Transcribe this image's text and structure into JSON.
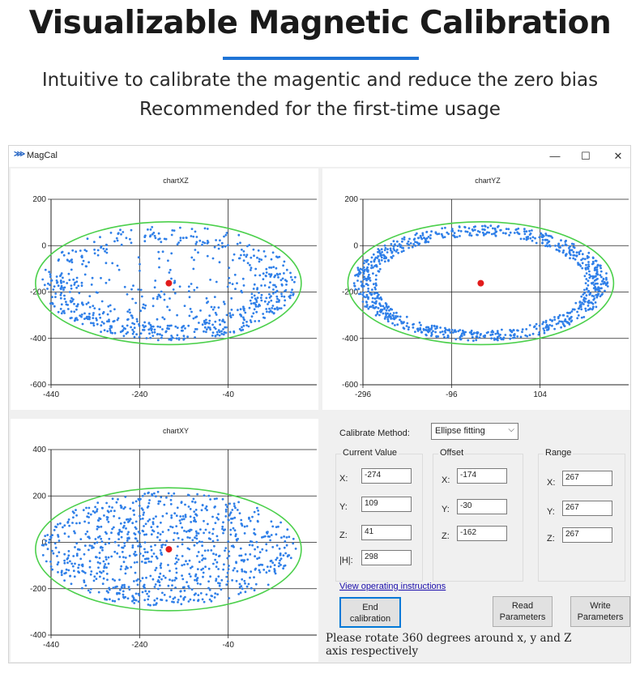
{
  "hero": {
    "title": "Visualizable Magnetic Calibration",
    "subtitle_line1": "Intuitive to calibrate the magentic and reduce the zero bias",
    "subtitle_line2": "Recommended for the first-time usage"
  },
  "window": {
    "title": "MagCal",
    "minimize": "—",
    "maximize": "☐",
    "close": "✕"
  },
  "charts": [
    {
      "title": "chartXZ",
      "xlim": [
        -440,
        160
      ],
      "ylim": [
        -600,
        200
      ],
      "xticks": [
        "-440",
        "-240",
        "-40"
      ],
      "yticks": [
        "200",
        "0",
        "-200",
        "-400",
        "-600"
      ],
      "ellipse": {
        "cx": -175,
        "cy": -162,
        "rx": 300,
        "ry": 265
      },
      "center": {
        "x": -174,
        "y": -162
      },
      "point_style": "shell"
    },
    {
      "title": "chartYZ",
      "xlim": [
        -296,
        304
      ],
      "ylim": [
        -600,
        200
      ],
      "xticks": [
        "-296",
        "-96",
        "104"
      ],
      "yticks": [
        "200",
        "0",
        "-200",
        "-400",
        "-600"
      ],
      "ellipse": {
        "cx": -30,
        "cy": -162,
        "rx": 300,
        "ry": 265
      },
      "center": {
        "x": -30,
        "y": -162
      },
      "point_style": "ring"
    },
    {
      "title": "chartXY",
      "xlim": [
        -440,
        160
      ],
      "ylim": [
        -400,
        400
      ],
      "xticks": [
        "-440",
        "-240",
        "-40"
      ],
      "yticks": [
        "400",
        "200",
        "0",
        "-200",
        "-400"
      ],
      "ellipse": {
        "cx": -175,
        "cy": -30,
        "rx": 300,
        "ry": 265
      },
      "center": {
        "x": -174,
        "y": -30
      },
      "point_style": "filled"
    }
  ],
  "colors": {
    "points": "#2f7fe8",
    "ellipse": "#4cd04c",
    "center": "#e21b1b",
    "grid": "#222222"
  },
  "controls": {
    "method_label": "Calibrate Method:",
    "method_value": "Ellipse fitting",
    "current_value": {
      "title": "Current Value",
      "rows": [
        {
          "label": "X:",
          "value": "-274"
        },
        {
          "label": "Y:",
          "value": "109"
        },
        {
          "label": "Z:",
          "value": "41"
        },
        {
          "label": "|H|:",
          "value": "298"
        }
      ]
    },
    "offset": {
      "title": "Offset",
      "rows": [
        {
          "label": "X:",
          "value": "-174"
        },
        {
          "label": "Y:",
          "value": "-30"
        },
        {
          "label": "Z:",
          "value": "-162"
        }
      ]
    },
    "range": {
      "title": "Range",
      "rows": [
        {
          "label": "X:",
          "value": "267"
        },
        {
          "label": "Y:",
          "value": "267"
        },
        {
          "label": "Z:",
          "value": "267"
        }
      ]
    },
    "instructions_link": "View operating instructions",
    "end_button": {
      "line1": "End",
      "line2": "calibration"
    },
    "read_button": {
      "line1": "Read",
      "line2": "Parameters"
    },
    "write_button": {
      "line1": "Write",
      "line2": "Parameters"
    },
    "status_line1": "Please rotate 360 degrees around x, y and Z",
    "status_line2": "axis respectively"
  }
}
